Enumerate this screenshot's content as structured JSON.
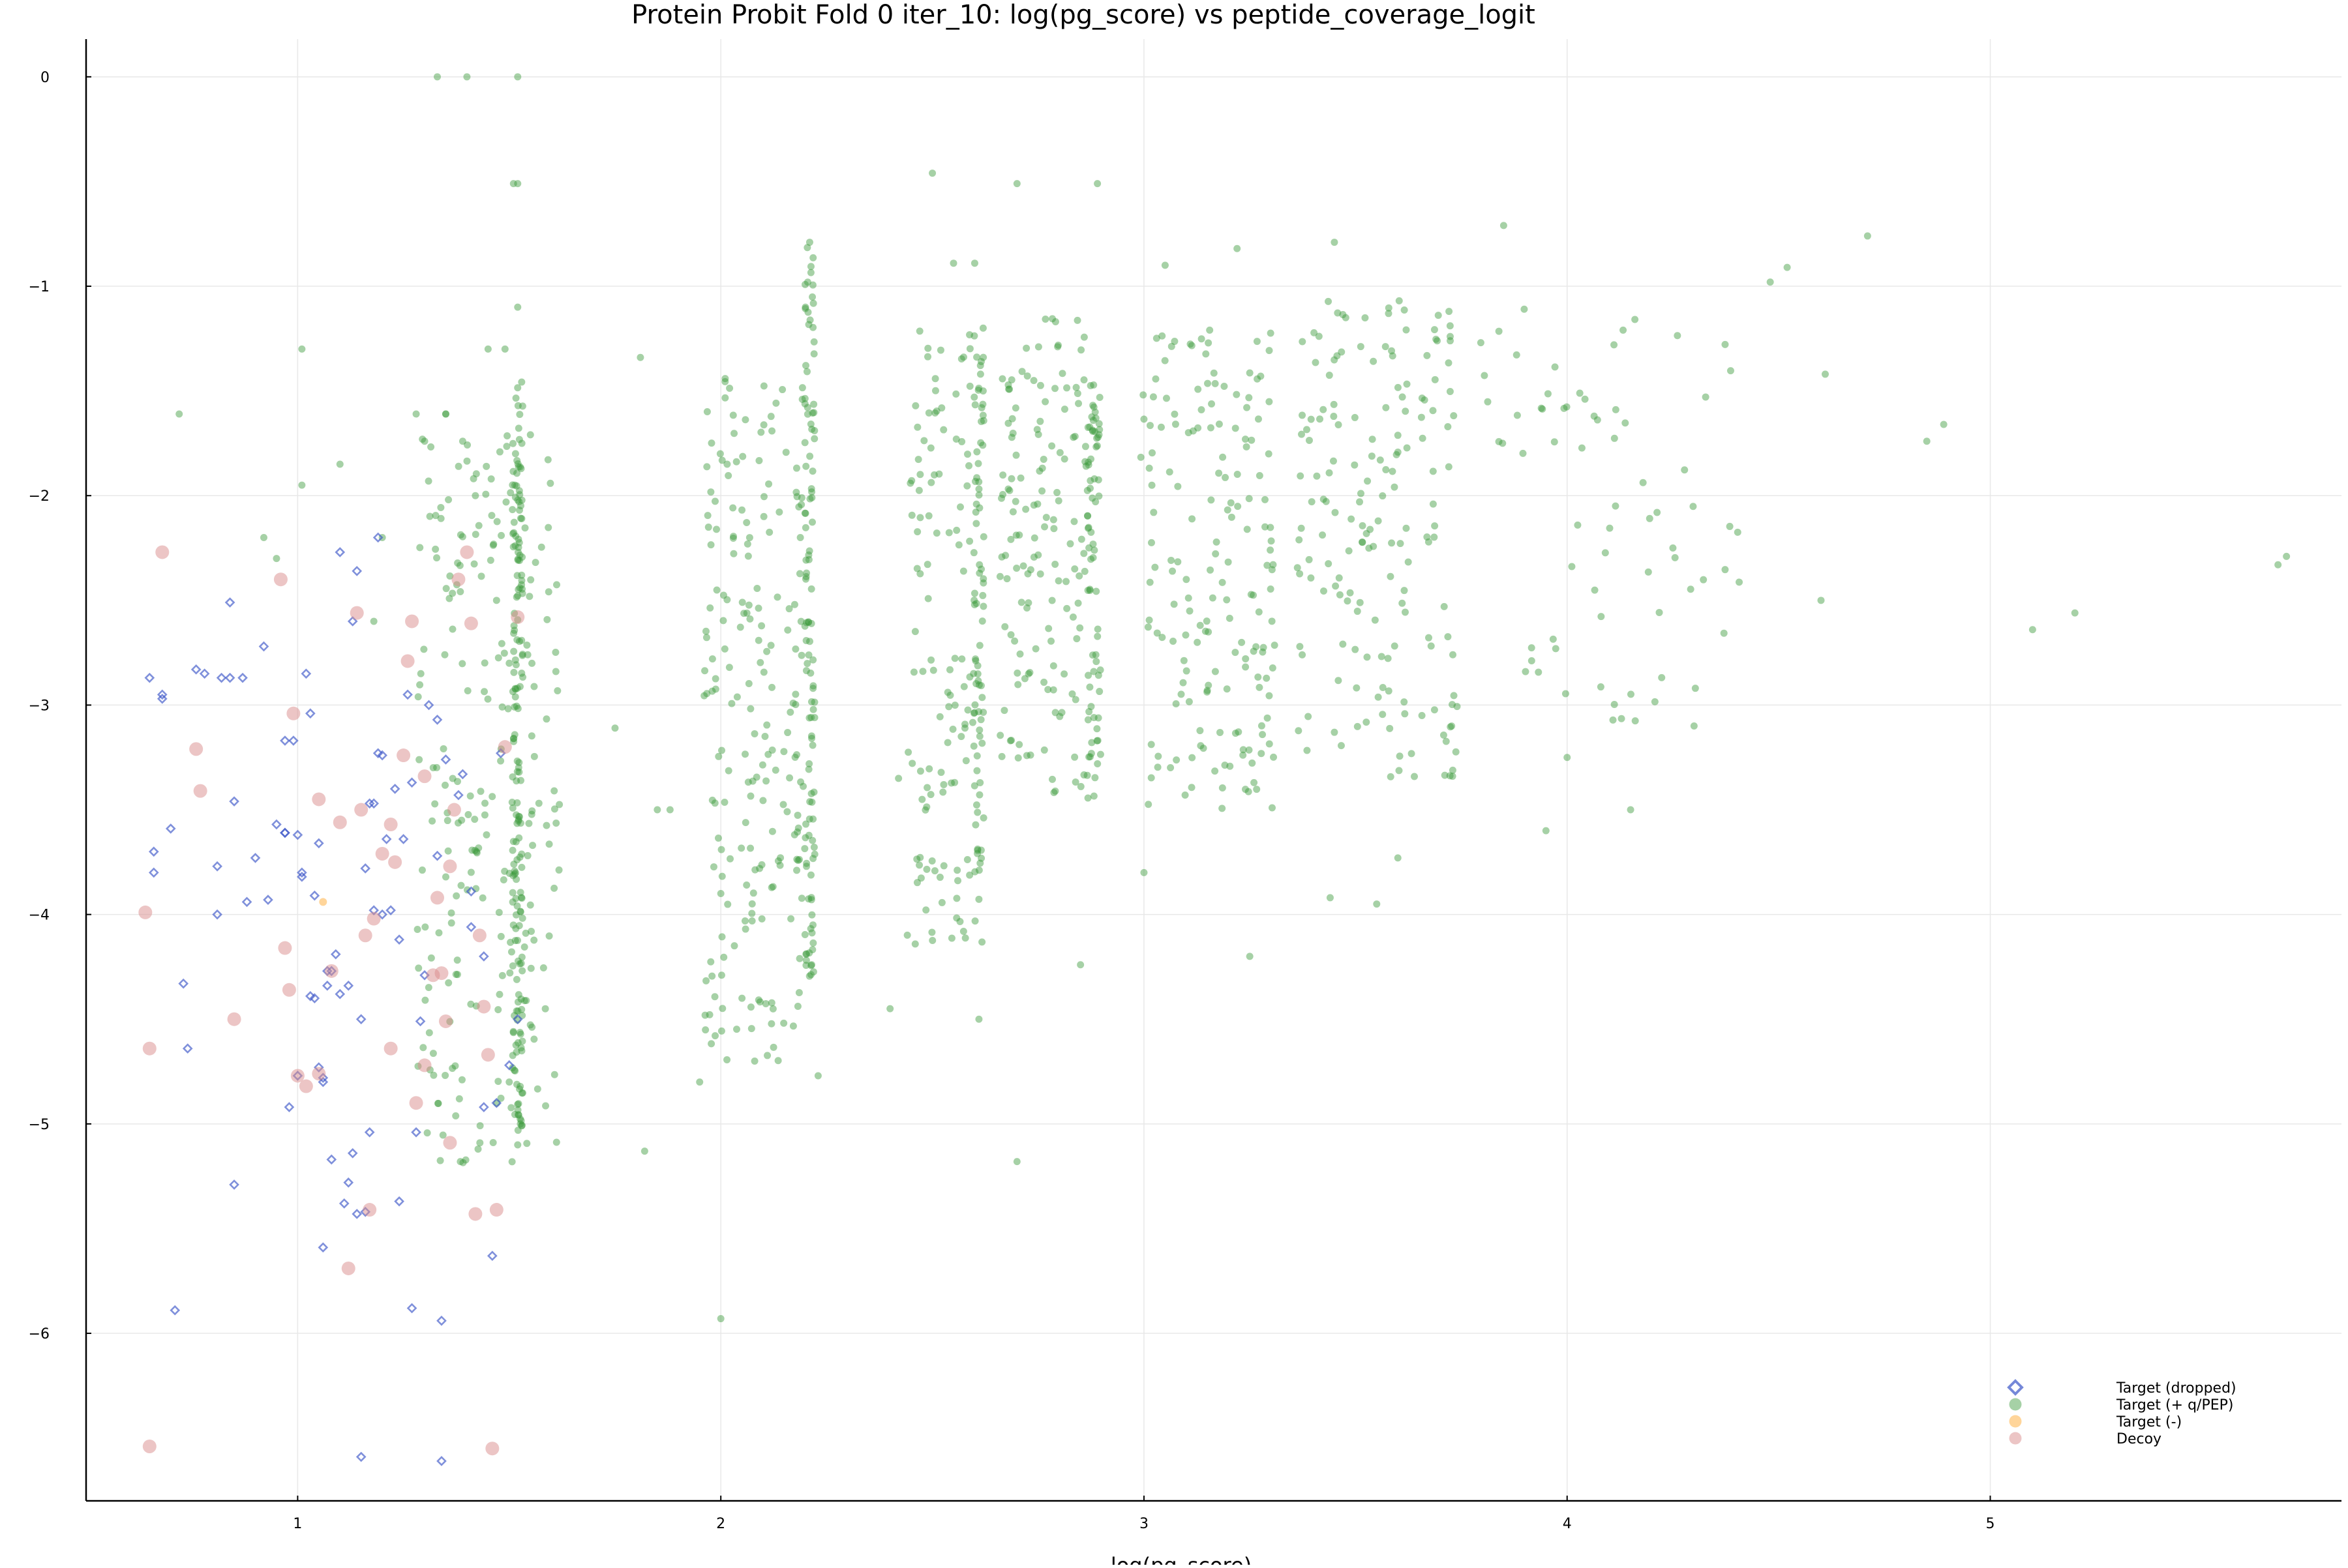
{
  "chart_data": {
    "type": "scatter",
    "title": "Protein Probit Fold 0 iter_10: log(pg_score) vs peptide_coverage_logit",
    "xlabel": "log(pg_score)",
    "ylabel": "",
    "xlim": [
      0.5,
      5.83
    ],
    "ylim": [
      -6.8,
      0.18
    ],
    "xticks": [
      1,
      2,
      3,
      4,
      5
    ],
    "yticks": [
      0,
      -1,
      -2,
      -3,
      -4,
      -5,
      -6
    ],
    "xtick_labels": [
      "1",
      "2",
      "3",
      "4",
      "5"
    ],
    "ytick_labels": [
      "0",
      "−1",
      "−2",
      "−3",
      "−4",
      "−5",
      "−6"
    ],
    "grid": true,
    "legend_position": "bottom-right",
    "legend": [
      "Target (dropped)",
      "Target (+ q/PEP)",
      "Target (-)",
      "Decoy"
    ],
    "colors": {
      "dropped": "#3a55c8",
      "target_pos": "#3a9a3a",
      "target_neg": "#ffb347",
      "decoy": "#d98c8c"
    },
    "series": [
      {
        "name": "Target (+ q/PEP)",
        "marker": "circle",
        "x": [
          1.33,
          1.4,
          1.52,
          1.52,
          1.51,
          1.52,
          2.5,
          2.7,
          2.89,
          4.71,
          4.52,
          4.48,
          4.89,
          4.85,
          5.7,
          5.68,
          5.2,
          5.1,
          0.72,
          1.01,
          1.01,
          1.35,
          1.45,
          1.49,
          1.81,
          1.75,
          1.82,
          2.0,
          2.7,
          2.55,
          2.6,
          2.62,
          3.05,
          3.22,
          3.45,
          3.44,
          3.85,
          4.61,
          4.6,
          2.85,
          3.25,
          3.55,
          3.45,
          3.6,
          2.2,
          2.21,
          2.62,
          2.61,
          1.28,
          1.3,
          1.35,
          1.39,
          1.42,
          1.47,
          1.5,
          1.52,
          1.2,
          1.18,
          0.92,
          0.95,
          1.1,
          2.23,
          2.08,
          2.05,
          1.95,
          1.85,
          1.88,
          2.42,
          2.4,
          3.1,
          3.0,
          4.3,
          4.25,
          4.0,
          4.15,
          3.95,
          2.0
        ],
        "y": [
          0.0,
          0.0,
          0.0,
          -0.51,
          -0.51,
          -1.1,
          -0.46,
          -0.51,
          -0.51,
          -0.76,
          -0.91,
          -0.98,
          -1.66,
          -1.74,
          -2.29,
          -2.33,
          -2.56,
          -2.64,
          -1.61,
          -1.3,
          -1.95,
          -1.61,
          -1.3,
          -1.3,
          -1.34,
          -3.11,
          -5.13,
          -5.93,
          -5.18,
          -0.89,
          -0.89,
          -1.2,
          -0.9,
          -0.82,
          -0.79,
          -3.92,
          -0.71,
          -1.42,
          -2.5,
          -4.24,
          -4.2,
          -3.95,
          -3.13,
          -3.73,
          -1.1,
          -0.79,
          -1.5,
          -4.5,
          -1.61,
          -1.74,
          -1.61,
          -1.74,
          -2.0,
          -2.5,
          -4.8,
          -5.1,
          -2.2,
          -2.6,
          -2.2,
          -2.3,
          -1.85,
          -4.77,
          -4.7,
          -4.4,
          -4.8,
          -3.5,
          -3.5,
          -3.35,
          -4.45,
          -2.4,
          -3.8,
          -3.1,
          -2.25,
          -3.25,
          -3.5,
          -3.6,
          -3.9
        ],
        "clusters": [
          {
            "x_center": 1.45,
            "x_spread": 0.17,
            "y_min": -5.2,
            "y_max": -1.7,
            "count": 240
          },
          {
            "x_center": 1.52,
            "x_spread": 0.012,
            "y_min": -5.05,
            "y_max": -1.45,
            "count": 150
          },
          {
            "x_center": 2.08,
            "x_spread": 0.12,
            "y_min": -4.7,
            "y_max": -1.35,
            "count": 200
          },
          {
            "x_center": 2.21,
            "x_spread": 0.012,
            "y_min": -4.3,
            "y_max": -0.8,
            "count": 110
          },
          {
            "x_center": 2.53,
            "x_spread": 0.09,
            "y_min": -4.15,
            "y_max": -1.2,
            "count": 130
          },
          {
            "x_center": 2.61,
            "x_spread": 0.012,
            "y_min": -3.8,
            "y_max": -1.2,
            "count": 65
          },
          {
            "x_center": 2.78,
            "x_spread": 0.12,
            "y_min": -3.45,
            "y_max": -1.15,
            "count": 160
          },
          {
            "x_center": 2.88,
            "x_spread": 0.014,
            "y_min": -3.45,
            "y_max": -1.6,
            "count": 55
          },
          {
            "x_center": 3.15,
            "x_spread": 0.16,
            "y_min": -3.5,
            "y_max": -1.2,
            "count": 170
          },
          {
            "x_center": 3.55,
            "x_spread": 0.19,
            "y_min": -3.35,
            "y_max": -1.05,
            "count": 170
          },
          {
            "x_center": 4.1,
            "x_spread": 0.32,
            "y_min": -3.1,
            "y_max": -1.1,
            "count": 70
          }
        ]
      },
      {
        "name": "Target (dropped)",
        "marker": "diamond",
        "x": [
          0.65,
          0.66,
          0.68,
          0.7,
          0.73,
          0.76,
          0.78,
          0.81,
          0.82,
          0.84,
          0.85,
          0.87,
          0.9,
          0.92,
          0.95,
          0.97,
          0.98,
          0.99,
          1.0,
          1.01,
          1.02,
          1.03,
          1.04,
          1.05,
          1.06,
          1.07,
          1.08,
          1.1,
          1.12,
          1.13,
          1.15,
          1.16,
          1.17,
          1.18,
          1.19,
          1.2,
          1.21,
          1.23,
          1.25,
          1.27,
          1.29,
          1.31,
          1.33,
          1.35,
          1.38,
          1.41,
          1.44,
          1.46,
          1.48,
          1.52,
          0.66,
          0.68,
          0.74,
          0.81,
          0.85,
          0.88,
          0.93,
          0.97,
          1.0,
          1.04,
          1.06,
          1.08,
          1.11,
          1.14,
          1.17,
          1.19,
          1.24,
          1.27,
          1.3,
          1.34,
          1.41,
          1.44,
          1.5,
          0.71,
          0.84,
          1.1,
          1.14,
          1.26,
          1.34,
          1.33,
          1.15,
          1.05,
          1.12,
          1.07,
          1.22,
          1.24,
          1.2,
          1.39,
          1.18,
          1.09,
          1.13,
          1.47,
          1.03,
          1.01,
          0.97,
          1.06,
          1.16,
          1.28
        ],
        "y": [
          -2.87,
          -3.7,
          -2.97,
          -3.59,
          -4.33,
          -2.83,
          -2.85,
          -3.77,
          -2.87,
          -2.51,
          -3.46,
          -2.87,
          -3.73,
          -2.72,
          -3.57,
          -3.61,
          -4.92,
          -3.17,
          -3.62,
          -3.8,
          -2.85,
          -4.39,
          -3.91,
          -4.73,
          -4.78,
          -4.34,
          -5.17,
          -4.38,
          -5.28,
          -5.14,
          -4.5,
          -3.78,
          -3.47,
          -3.98,
          -2.2,
          -3.24,
          -3.64,
          -3.4,
          -3.64,
          -3.37,
          -4.51,
          -3.0,
          -3.72,
          -3.26,
          -3.43,
          -3.89,
          -4.92,
          -5.63,
          -3.23,
          -4.5,
          -3.8,
          -2.95,
          -4.64,
          -4.0,
          -5.29,
          -3.94,
          -3.93,
          -3.61,
          -4.77,
          -4.4,
          -4.8,
          -4.27,
          -5.38,
          -5.43,
          -5.04,
          -3.23,
          -4.12,
          -5.88,
          -4.29,
          -5.94,
          -4.06,
          -4.2,
          -4.72,
          -5.89,
          -2.87,
          -2.27,
          -2.36,
          -2.95,
          -6.61,
          -3.07,
          -6.59,
          -3.66,
          -4.34,
          -4.27,
          -3.98,
          -5.37,
          -4.0,
          -3.33,
          -3.47,
          -4.19,
          -2.6,
          -4.9,
          -3.04,
          -3.82,
          -3.17,
          -5.59,
          -5.42,
          -5.04
        ],
        "clusters": []
      },
      {
        "name": "Target (-)",
        "marker": "circle",
        "x": [
          1.06
        ],
        "y": [
          -3.94
        ],
        "clusters": []
      },
      {
        "name": "Decoy",
        "marker": "circle",
        "x": [
          0.68,
          0.64,
          0.65,
          0.96,
          0.99,
          0.76,
          0.77,
          0.97,
          0.98,
          1.0,
          1.02,
          1.05,
          0.85,
          1.1,
          1.12,
          1.14,
          1.16,
          1.18,
          1.22,
          1.23,
          1.26,
          1.27,
          1.3,
          1.33,
          1.34,
          1.36,
          1.37,
          1.4,
          1.41,
          1.43,
          1.45,
          1.47,
          1.49,
          1.52,
          1.38,
          1.25,
          1.15,
          1.2,
          1.3,
          1.35,
          1.05,
          1.08,
          1.32,
          1.44,
          1.28,
          1.17,
          1.22,
          1.36,
          1.42,
          0.65,
          1.46
        ],
        "y": [
          -2.27,
          -3.99,
          -4.64,
          -2.4,
          -3.04,
          -3.21,
          -3.41,
          -4.16,
          -4.36,
          -4.77,
          -4.82,
          -4.76,
          -4.5,
          -3.56,
          -5.69,
          -2.56,
          -4.1,
          -4.02,
          -3.57,
          -3.75,
          -2.79,
          -2.6,
          -3.34,
          -3.92,
          -4.28,
          -3.77,
          -3.5,
          -2.27,
          -2.61,
          -4.1,
          -4.67,
          -5.41,
          -3.2,
          -2.58,
          -2.4,
          -3.24,
          -3.5,
          -3.71,
          -4.72,
          -4.51,
          -3.45,
          -4.27,
          -4.29,
          -4.44,
          -4.9,
          -5.41,
          -4.64,
          -5.09,
          -5.43,
          -6.54,
          -6.55
        ],
        "clusters": []
      }
    ]
  }
}
